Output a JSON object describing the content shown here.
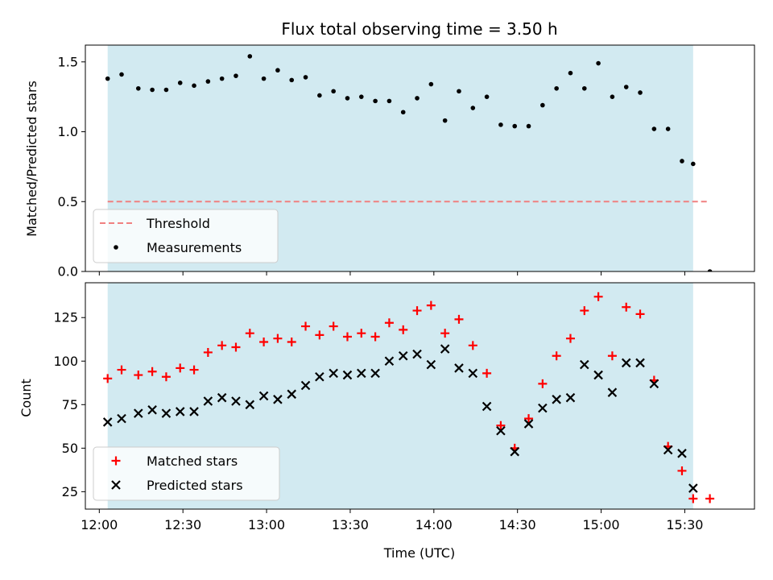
{
  "chart_data": {
    "type": "scatter",
    "title": "Flux total observing time = 3.50 h",
    "xlabel": "Time (UTC)",
    "x_ticks": [
      "12:00",
      "12:30",
      "13:00",
      "13:30",
      "14:00",
      "14:30",
      "15:00",
      "15:30"
    ],
    "shaded_region": {
      "start": "12:03",
      "end": "15:33",
      "color": "#add8e6"
    },
    "times": [
      "12:03",
      "12:08",
      "12:14",
      "12:19",
      "12:24",
      "12:29",
      "12:34",
      "12:39",
      "12:44",
      "12:49",
      "12:54",
      "12:59",
      "13:04",
      "13:09",
      "13:14",
      "13:19",
      "13:24",
      "13:29",
      "13:34",
      "13:39",
      "13:44",
      "13:49",
      "13:54",
      "13:59",
      "14:04",
      "14:09",
      "14:14",
      "14:19",
      "14:24",
      "14:29",
      "14:34",
      "14:39",
      "14:44",
      "14:49",
      "14:54",
      "14:59",
      "15:04",
      "15:09",
      "15:14",
      "15:19",
      "15:24",
      "15:29",
      "15:33",
      "15:39"
    ],
    "top_panel": {
      "ylabel": "Matched/Predicted stars",
      "ylim": [
        0,
        1.62
      ],
      "y_ticks": [
        "0.0",
        "0.5",
        "1.0",
        "1.5"
      ],
      "threshold": {
        "name": "Threshold",
        "value": 0.5,
        "start": "12:03",
        "end": "15:39",
        "color": "#f08080"
      },
      "series": [
        {
          "name": "Measurements",
          "color": "#000000",
          "values": [
            1.38,
            1.41,
            1.31,
            1.3,
            1.3,
            1.35,
            1.33,
            1.36,
            1.38,
            1.4,
            1.54,
            1.38,
            1.44,
            1.37,
            1.39,
            1.26,
            1.29,
            1.24,
            1.25,
            1.22,
            1.22,
            1.14,
            1.24,
            1.34,
            1.08,
            1.29,
            1.17,
            1.25,
            1.05,
            1.04,
            1.04,
            1.19,
            1.31,
            1.42,
            1.31,
            1.49,
            1.25,
            1.32,
            1.28,
            1.02,
            1.02,
            0.79,
            0.77,
            0.0
          ]
        }
      ],
      "legend_placement": "lower-left"
    },
    "bottom_panel": {
      "ylabel": "Count",
      "ylim": [
        15,
        145
      ],
      "y_ticks": [
        "25",
        "50",
        "75",
        "100",
        "125"
      ],
      "series": [
        {
          "name": "Matched stars",
          "marker": "plus",
          "color": "#ff0000",
          "values": [
            90,
            95,
            92,
            94,
            91,
            96,
            95,
            105,
            109,
            108,
            116,
            111,
            113,
            111,
            120,
            115,
            120,
            114,
            116,
            114,
            122,
            118,
            129,
            132,
            116,
            124,
            109,
            93,
            63,
            50,
            67,
            87,
            103,
            113,
            129,
            137,
            103,
            131,
            127,
            89,
            51,
            37,
            21,
            21
          ]
        },
        {
          "name": "Predicted stars",
          "marker": "x",
          "color": "#000000",
          "values": [
            65,
            67,
            70,
            72,
            70,
            71,
            71,
            77,
            79,
            77,
            75,
            80,
            78,
            81,
            86,
            91,
            93,
            92,
            93,
            93,
            100,
            103,
            104,
            98,
            107,
            96,
            93,
            74,
            60,
            48,
            64,
            73,
            78,
            79,
            98,
            92,
            82,
            99,
            99,
            87,
            49,
            47,
            27,
            null
          ]
        }
      ],
      "legend_placement": "lower-left"
    }
  }
}
